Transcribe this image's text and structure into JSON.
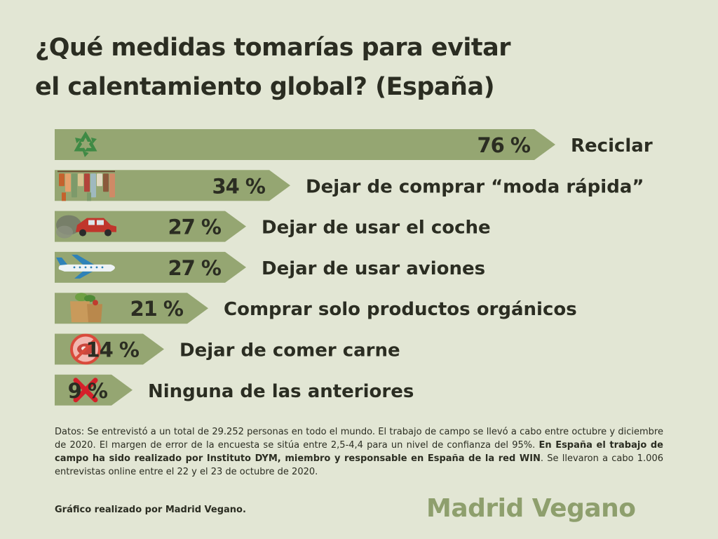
{
  "title_lines": [
    "¿Qué medidas tomarías para evitar",
    "el calentamiento global? (España)"
  ],
  "colors": {
    "background": "#e2e6d4",
    "bar": "#95a672",
    "text": "#2b2d22",
    "logo": "#8e9f6d"
  },
  "chart_data": {
    "type": "bar",
    "orientation": "horizontal",
    "categories": [
      "Reciclar",
      "Dejar de comprar “moda rápida”",
      "Dejar de usar el coche",
      "Dejar de usar aviones",
      "Comprar solo productos orgánicos",
      "Dejar de comer carne",
      "Ninguna de las anteriores"
    ],
    "values": [
      76,
      34,
      27,
      27,
      21,
      14,
      9
    ],
    "value_labels": [
      "76 %",
      "34 %",
      "27 %",
      "27 %",
      "21 %",
      "14 %",
      "9 %"
    ],
    "icons": [
      "recycle-icon",
      "clothes-rack-icon",
      "car-icon",
      "airplane-icon",
      "groceries-icon",
      "no-meat-icon",
      "cross-icon"
    ],
    "xlim": [
      0,
      100
    ],
    "grid": false,
    "legend": "none"
  },
  "notes": {
    "part1": "Datos: Se entrevistó a un total de 29.252 personas en todo el mundo. El trabajo de campo se llevó a cabo entre octubre y diciembre de 2020. El margen de error de la encuesta se sitúa entre 2,5-4,4 para un nivel de confianza del 95%. ",
    "bold": "En España el trabajo de campo ha sido realizado por Instituto DYM, miembro y responsable en España de la red WIN",
    "part2": ". Se llevaron a cabo 1.006 entrevistas online entre el 22 y el 23 de octubre de 2020."
  },
  "credit": "Gráfico realizado por Madrid Vegano.",
  "logo_text": "Madrid Vegano"
}
